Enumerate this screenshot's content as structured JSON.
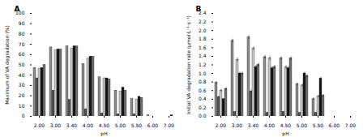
{
  "chart_data": [
    {
      "type": "bar",
      "title": "A",
      "xlabel": "pH",
      "ylabel": "Maximum of VA degradation (%)",
      "categories": [
        "2.00",
        "3.00",
        "3.40",
        "4.00",
        "4.50",
        "5.00",
        "5.50",
        "6.00",
        "7.00"
      ],
      "ylim": [
        0,
        100
      ],
      "yticks": [
        0,
        10,
        20,
        30,
        40,
        50,
        60,
        70,
        80,
        90,
        100
      ],
      "series": [
        {
          "color": "#8c8c8c",
          "values": [
            47,
            67,
            68,
            51,
            38,
            25,
            17,
            1,
            0
          ]
        },
        {
          "color": "#555555",
          "values": [
            37,
            25,
            16,
            7,
            3,
            2,
            2,
            0,
            0
          ]
        },
        {
          "color": "#c8c8c8",
          "values": [
            46,
            64,
            66,
            56,
            37,
            24,
            16,
            0,
            0
          ]
        },
        {
          "color": "#1a1a1a",
          "values": [
            47,
            65,
            68,
            58,
            37,
            28,
            19,
            0,
            1
          ]
        },
        {
          "color": "#707070",
          "values": [
            50,
            65,
            68,
            58,
            36,
            25,
            18,
            0,
            0
          ]
        }
      ]
    },
    {
      "type": "bar",
      "title": "B",
      "xlabel": "pH",
      "ylabel": "Initial VA degradation rate (μmol·L⁻¹·s⁻¹)",
      "categories": [
        "2.00",
        "3.00",
        "3.40",
        "4.00",
        "4.50",
        "5.00",
        "5.50",
        "6.00",
        "7.00"
      ],
      "ylim": [
        0,
        2.4
      ],
      "yticks": [
        {
          "value": 0,
          "label": "0.0"
        },
        0.2,
        0.4,
        0.6,
        0.8,
        {
          "value": 1,
          "label": "1.0"
        },
        1.2,
        1.4,
        1.6,
        1.8,
        {
          "value": 2,
          "label": "2.0"
        },
        2.2,
        2.4
      ],
      "series": [
        {
          "color": "#8c8c8c",
          "values": [
            0.78,
            1.76,
            1.84,
            1.38,
            1.35,
            0.75,
            0.4,
            0.0,
            0.0
          ],
          "errors": [
            0.03,
            0.04,
            0.04,
            0.04,
            0.04,
            0.03,
            0.03,
            0.0,
            0.0
          ]
        },
        {
          "color": "#555555",
          "values": [
            0.45,
            0.1,
            0.58,
            0.08,
            0.1,
            0.08,
            0.08,
            0.0,
            0.0
          ],
          "errors": [
            0.02,
            0.01,
            0.03,
            0.01,
            0.01,
            0.01,
            0.01,
            0.0,
            0.0
          ]
        },
        {
          "color": "#c8c8c8",
          "values": [
            0.6,
            1.32,
            1.58,
            1.35,
            1.14,
            0.72,
            0.46,
            0.0,
            0.0
          ],
          "errors": [
            0.03,
            0.04,
            0.04,
            0.04,
            0.04,
            0.03,
            0.03,
            0.0,
            0.0
          ]
        },
        {
          "color": "#1a1a1a",
          "values": [
            0.4,
            1.0,
            1.15,
            1.12,
            1.12,
            1.0,
            0.88,
            0.0,
            0.0
          ],
          "errors": [
            0.02,
            0.03,
            0.04,
            0.04,
            0.04,
            0.03,
            0.03,
            0.0,
            0.0
          ]
        },
        {
          "color": "#707070",
          "values": [
            0.64,
            1.0,
            1.2,
            1.15,
            1.35,
            0.94,
            0.48,
            0.0,
            0.0
          ],
          "errors": [
            0.03,
            0.03,
            0.04,
            0.04,
            0.04,
            0.03,
            0.03,
            0.0,
            0.0
          ]
        }
      ]
    }
  ]
}
